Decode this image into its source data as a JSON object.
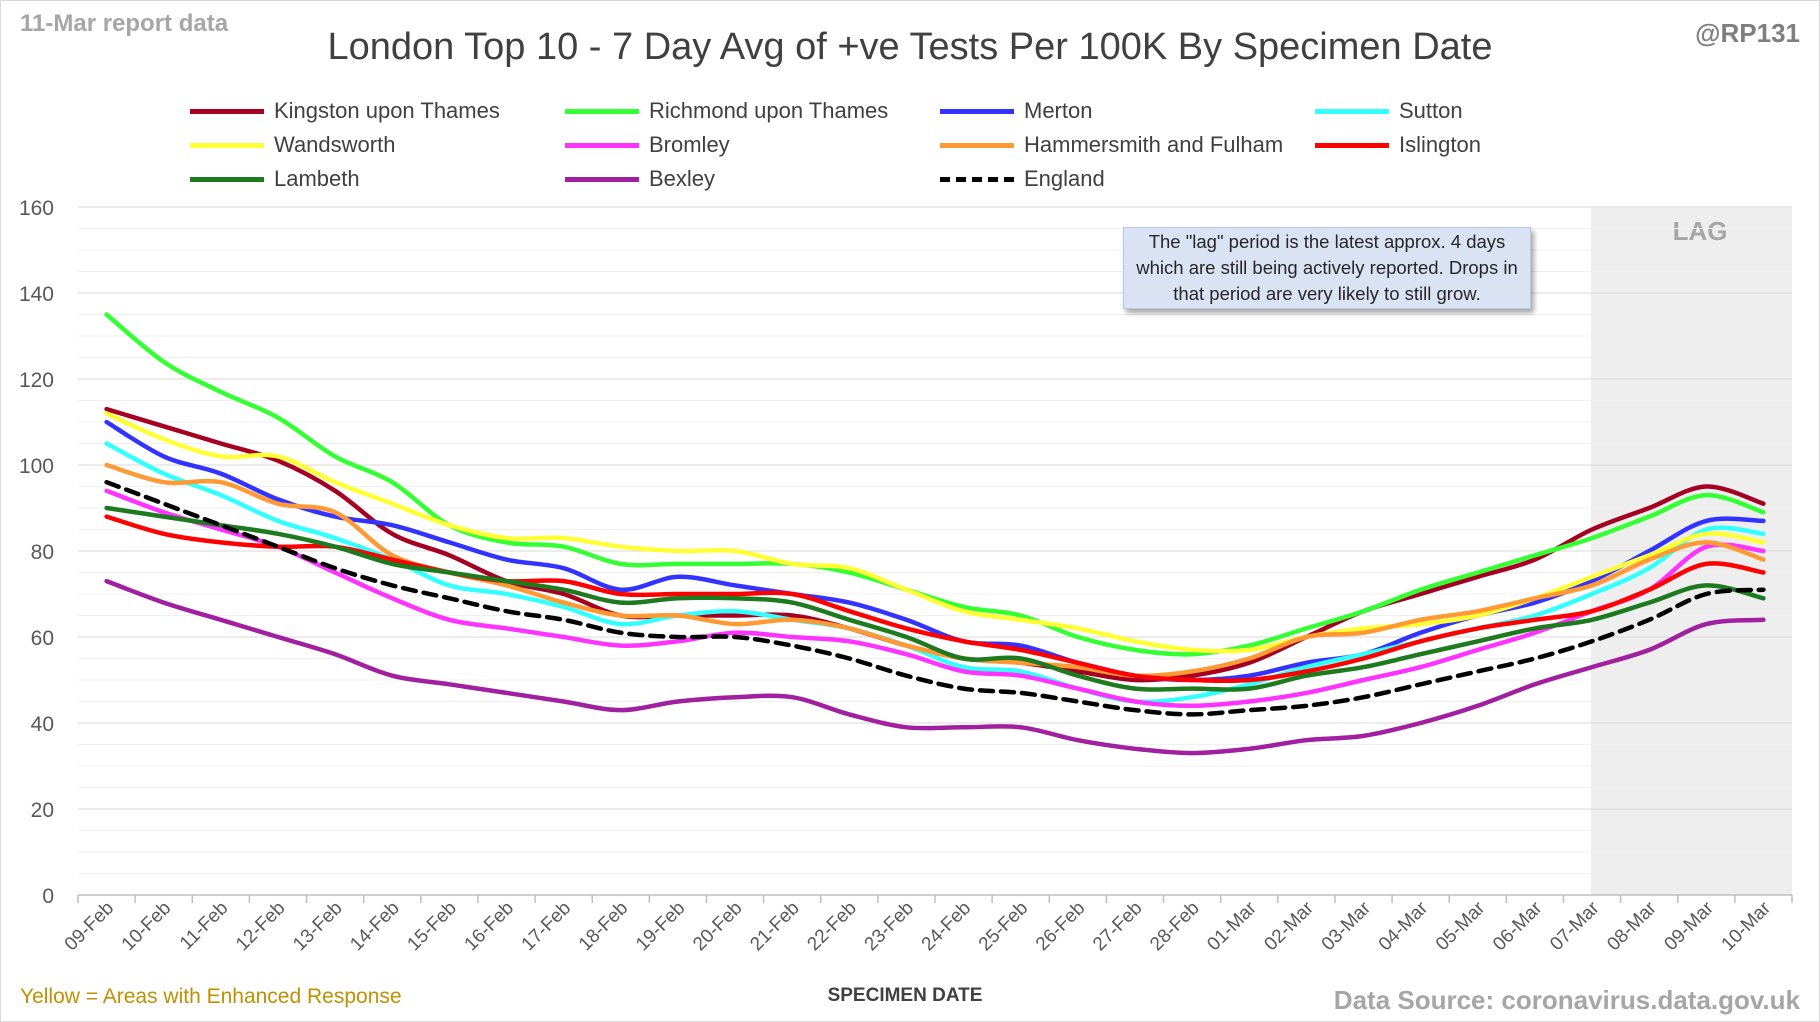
{
  "header": {
    "report_label": "11-Mar report data",
    "handle": "@RP131",
    "title": "London Top 10 - 7 Day Avg of +ve Tests Per 100K By Specimen Date"
  },
  "footer": {
    "note": "Yellow = Areas with Enhanced Response",
    "source": "Data Source: coronavirus.data.gov.uk"
  },
  "annotation": "The \"lag\" period is the latest approx. 4 days which are still being actively reported.  Drops in that period are very likely to still grow.",
  "chart_data": {
    "type": "line",
    "title": "London Top 10 - 7 Day Avg of +ve Tests Per 100K By Specimen Date",
    "xlabel": "SPECIMEN DATE",
    "ylabel": "",
    "ylim": [
      0,
      160
    ],
    "yticks": [
      "0",
      "20",
      "40",
      "60",
      "80",
      "100",
      "120",
      "140",
      "160"
    ],
    "grid": true,
    "legend_position": "top",
    "lag_region": {
      "label": "LAG",
      "from": "07-Mar",
      "to": "10-Mar"
    },
    "categories": [
      "09-Feb",
      "10-Feb",
      "11-Feb",
      "12-Feb",
      "13-Feb",
      "14-Feb",
      "15-Feb",
      "16-Feb",
      "17-Feb",
      "18-Feb",
      "19-Feb",
      "20-Feb",
      "21-Feb",
      "22-Feb",
      "23-Feb",
      "24-Feb",
      "25-Feb",
      "26-Feb",
      "27-Feb",
      "28-Feb",
      "01-Mar",
      "02-Mar",
      "03-Mar",
      "04-Mar",
      "05-Mar",
      "06-Mar",
      "07-Mar",
      "08-Mar",
      "09-Mar",
      "10-Mar"
    ],
    "series": [
      {
        "name": "Kingston upon Thames",
        "color": "#a50021",
        "dashed": false,
        "values": [
          113,
          109,
          105,
          101,
          94,
          84,
          79,
          73,
          70,
          65,
          65,
          65,
          65,
          62,
          58,
          55,
          54,
          52,
          50,
          51,
          54,
          60,
          66,
          70,
          74,
          78,
          85,
          90,
          95,
          91
        ]
      },
      {
        "name": "Richmond upon Thames",
        "color": "#33ff33",
        "dashed": false,
        "values": [
          135,
          124,
          117,
          111,
          102,
          96,
          86,
          82,
          81,
          77,
          77,
          77,
          77,
          75,
          71,
          67,
          65,
          60,
          57,
          56,
          58,
          62,
          66,
          71,
          75,
          79,
          83,
          88,
          93,
          89
        ]
      },
      {
        "name": "Merton",
        "color": "#3333ff",
        "dashed": false,
        "values": [
          110,
          102,
          98,
          92,
          88,
          86,
          82,
          78,
          76,
          71,
          74,
          72,
          70,
          68,
          64,
          59,
          58,
          54,
          51,
          50,
          51,
          54,
          56,
          61,
          65,
          68,
          73,
          80,
          87,
          87
        ]
      },
      {
        "name": "Sutton",
        "color": "#33ffff",
        "dashed": false,
        "values": [
          105,
          98,
          93,
          87,
          83,
          78,
          72,
          70,
          67,
          63,
          65,
          66,
          64,
          62,
          58,
          53,
          52,
          48,
          45,
          46,
          49,
          53,
          56,
          59,
          62,
          65,
          70,
          76,
          85,
          84
        ]
      },
      {
        "name": "Wandsworth",
        "color": "#ffff33",
        "dashed": false,
        "values": [
          112,
          106,
          102,
          102,
          96,
          91,
          86,
          83,
          83,
          81,
          80,
          80,
          77,
          76,
          71,
          66,
          64,
          62,
          59,
          57,
          57,
          60,
          62,
          63,
          65,
          69,
          74,
          79,
          84,
          82
        ]
      },
      {
        "name": "Bromley",
        "color": "#ff33ff",
        "dashed": false,
        "values": [
          94,
          89,
          85,
          81,
          75,
          69,
          64,
          62,
          60,
          58,
          59,
          61,
          60,
          59,
          56,
          52,
          51,
          48,
          45,
          44,
          45,
          47,
          50,
          53,
          57,
          61,
          66,
          71,
          81,
          80
        ]
      },
      {
        "name": "Hammersmith and Fulham",
        "color": "#ff9933",
        "dashed": false,
        "values": [
          100,
          96,
          96,
          91,
          89,
          79,
          75,
          72,
          68,
          65,
          65,
          63,
          64,
          62,
          58,
          55,
          54,
          53,
          51,
          52,
          55,
          60,
          61,
          64,
          66,
          69,
          72,
          78,
          82,
          78
        ]
      },
      {
        "name": "Islington",
        "color": "#ff0000",
        "dashed": false,
        "values": [
          88,
          84,
          82,
          81,
          81,
          78,
          75,
          73,
          73,
          70,
          70,
          70,
          70,
          66,
          62,
          59,
          57,
          54,
          51,
          50,
          50,
          52,
          55,
          59,
          62,
          64,
          66,
          71,
          77,
          75
        ]
      },
      {
        "name": "Lambeth",
        "color": "#1e7a1e",
        "dashed": false,
        "values": [
          90,
          88,
          86,
          84,
          81,
          77,
          75,
          73,
          71,
          68,
          69,
          69,
          68,
          64,
          60,
          55,
          55,
          51,
          48,
          48,
          48,
          51,
          53,
          56,
          59,
          62,
          64,
          68,
          72,
          69
        ]
      },
      {
        "name": "Bexley",
        "color": "#a020a0",
        "dashed": false,
        "values": [
          73,
          68,
          64,
          60,
          56,
          51,
          49,
          47,
          45,
          43,
          45,
          46,
          46,
          42,
          39,
          39,
          39,
          36,
          34,
          33,
          34,
          36,
          37,
          40,
          44,
          49,
          53,
          57,
          63,
          64
        ]
      },
      {
        "name": "England",
        "color": "#000000",
        "dashed": true,
        "values": [
          96,
          91,
          86,
          81,
          76,
          72,
          69,
          66,
          64,
          61,
          60,
          60,
          58,
          55,
          51,
          48,
          47,
          45,
          43,
          42,
          43,
          44,
          46,
          49,
          52,
          55,
          59,
          64,
          70,
          71
        ]
      }
    ]
  }
}
